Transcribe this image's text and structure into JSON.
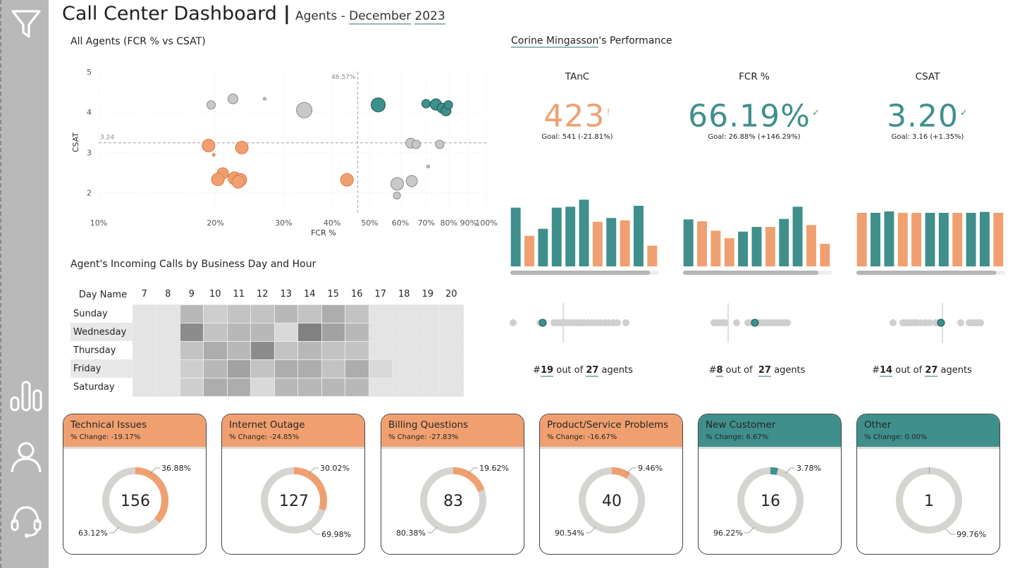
{
  "header": {
    "title": "Call Center Dashboard",
    "separator": "|",
    "subtitle_prefix": "Agents - ",
    "month": "December",
    "year": "2023"
  },
  "sidebar": {
    "icons": [
      "filter-icon",
      "bar-chart-icon",
      "user-icon",
      "headset-icon"
    ]
  },
  "scatter": {
    "title": "All Agents (FCR % vs CSAT)",
    "xlabel": "FCR %",
    "ylabel": "CSAT",
    "x_ticks": [
      "10%",
      "20%",
      "30%",
      "40%",
      "50%",
      "60%",
      "70%",
      "80%",
      "90%",
      "100%"
    ],
    "y_ticks": [
      "2",
      "3",
      "4",
      "5"
    ],
    "ref_x_label": "46.57%",
    "ref_y_label": "3.24"
  },
  "chart_data": [
    {
      "type": "scatter",
      "title": "All Agents (FCR % vs CSAT)",
      "xlabel": "FCR %",
      "ylabel": "CSAT",
      "x_scale": "log",
      "xlim": [
        10,
        100
      ],
      "ylim": [
        1.5,
        5
      ],
      "grid": true,
      "reference_lines": {
        "x": 46.57,
        "y": 3.24
      },
      "points": [
        {
          "x": 19.5,
          "y": 4.18,
          "size": 6,
          "group": "gray"
        },
        {
          "x": 22.2,
          "y": 4.33,
          "size": 7,
          "group": "gray"
        },
        {
          "x": 26.8,
          "y": 4.33,
          "size": 2,
          "group": "gray"
        },
        {
          "x": 33.9,
          "y": 4.05,
          "size": 11,
          "group": "gray"
        },
        {
          "x": 52.6,
          "y": 4.18,
          "size": 10,
          "group": "teal"
        },
        {
          "x": 69.9,
          "y": 4.21,
          "size": 6,
          "group": "teal"
        },
        {
          "x": 74.1,
          "y": 4.19,
          "size": 8,
          "group": "teal"
        },
        {
          "x": 76.9,
          "y": 4.1,
          "size": 7,
          "group": "teal"
        },
        {
          "x": 78.7,
          "y": 4.03,
          "size": 7,
          "group": "teal"
        },
        {
          "x": 79.8,
          "y": 4.18,
          "size": 6,
          "group": "teal"
        },
        {
          "x": 19.2,
          "y": 3.17,
          "size": 9,
          "group": "orange"
        },
        {
          "x": 23.4,
          "y": 3.12,
          "size": 9,
          "group": "orange"
        },
        {
          "x": 19.8,
          "y": 2.94,
          "size": 2,
          "group": "orange"
        },
        {
          "x": 20.9,
          "y": 2.48,
          "size": 8,
          "group": "orange"
        },
        {
          "x": 20.3,
          "y": 2.33,
          "size": 9,
          "group": "orange"
        },
        {
          "x": 22.4,
          "y": 2.36,
          "size": 9,
          "group": "orange"
        },
        {
          "x": 23.2,
          "y": 2.32,
          "size": 9,
          "group": "orange"
        },
        {
          "x": 22.9,
          "y": 2.27,
          "size": 9,
          "group": "orange"
        },
        {
          "x": 43.7,
          "y": 2.32,
          "size": 9,
          "group": "orange"
        },
        {
          "x": 63.8,
          "y": 3.23,
          "size": 7,
          "group": "gray"
        },
        {
          "x": 65.9,
          "y": 3.2,
          "size": 6,
          "group": "gray"
        },
        {
          "x": 75.8,
          "y": 3.2,
          "size": 6,
          "group": "gray"
        },
        {
          "x": 70.8,
          "y": 2.65,
          "size": 2,
          "group": "gray"
        },
        {
          "x": 58.9,
          "y": 2.22,
          "size": 9,
          "group": "gray"
        },
        {
          "x": 64.2,
          "y": 2.29,
          "size": 8,
          "group": "gray"
        },
        {
          "x": 58.8,
          "y": 1.93,
          "size": 5,
          "group": "gray"
        }
      ]
    },
    {
      "type": "heatmap",
      "title": "Agent's Incoming Calls by Business Day and Hour",
      "columns": [
        "7",
        "8",
        "9",
        "10",
        "11",
        "12",
        "13",
        "14",
        "15",
        "16",
        "17",
        "18",
        "19",
        "20"
      ],
      "rows": [
        "Sunday",
        "Wednesday",
        "Thursday",
        "Friday",
        "Saturday"
      ],
      "values": [
        [
          0,
          0,
          4,
          2,
          3,
          3,
          4,
          3,
          5,
          3,
          0,
          0,
          0,
          0
        ],
        [
          0,
          0,
          8,
          3,
          4,
          4,
          1,
          9,
          6,
          4,
          0,
          0,
          0,
          0
        ],
        [
          0,
          0,
          3,
          5,
          4,
          8,
          3,
          4,
          3,
          3,
          0,
          0,
          0,
          0
        ],
        [
          0,
          0,
          2,
          4,
          6,
          3,
          5,
          5,
          3,
          5,
          1,
          0,
          0,
          0
        ],
        [
          0,
          0,
          2,
          5,
          5,
          1,
          4,
          4,
          4,
          4,
          0,
          0,
          0,
          0
        ]
      ]
    },
    {
      "type": "bar",
      "title": "TAnC",
      "values": [
        12.5,
        6.5,
        8,
        12.5,
        12.7,
        14.2,
        9.5,
        10.3,
        9.8,
        12.9,
        4.4
      ],
      "colors": [
        "teal",
        "orange",
        "teal",
        "teal",
        "teal",
        "teal",
        "orange",
        "teal",
        "orange",
        "teal",
        "orange"
      ]
    },
    {
      "type": "bar",
      "title": "FCR %",
      "values": [
        10,
        9.6,
        7.6,
        6,
        7.4,
        8.4,
        8.4,
        10.1,
        12.7,
        8.8,
        4.8
      ],
      "colors": [
        "teal",
        "orange",
        "orange",
        "orange",
        "teal",
        "teal",
        "orange",
        "teal",
        "teal",
        "orange",
        "orange"
      ]
    },
    {
      "type": "bar",
      "title": "CSAT",
      "values": [
        11.4,
        11.4,
        11.7,
        11.4,
        11.4,
        11.4,
        11.4,
        11.4,
        11.4,
        11.6,
        11.4
      ],
      "colors": [
        "orange",
        "teal",
        "teal",
        "orange",
        "orange",
        "teal",
        "teal",
        "orange",
        "teal",
        "teal",
        "orange"
      ]
    },
    {
      "type": "pie",
      "title": "Technical Issues",
      "center_value": "156",
      "slices": [
        {
          "label": "36.88%",
          "value": 36.88
        },
        {
          "label": "63.12%",
          "value": 63.12
        }
      ]
    },
    {
      "type": "pie",
      "title": "Internet Outage",
      "center_value": "127",
      "slices": [
        {
          "label": "30.02%",
          "value": 30.02
        },
        {
          "label": "69.98%",
          "value": 69.98
        }
      ]
    },
    {
      "type": "pie",
      "title": "Billing Questions",
      "center_value": "83",
      "slices": [
        {
          "label": "19.62%",
          "value": 19.62
        },
        {
          "label": "80.38%",
          "value": 80.38
        }
      ]
    },
    {
      "type": "pie",
      "title": "Product/Service Problems",
      "center_value": "40",
      "slices": [
        {
          "label": "9.46%",
          "value": 9.46
        },
        {
          "label": "90.54%",
          "value": 90.54
        }
      ]
    },
    {
      "type": "pie",
      "title": "New Customer",
      "center_value": "16",
      "slices": [
        {
          "label": "3.78%",
          "value": 3.78
        },
        {
          "label": "96.22%",
          "value": 96.22
        }
      ]
    },
    {
      "type": "pie",
      "title": "Other",
      "center_value": "1",
      "slices": [
        {
          "label": "",
          "value": 0.24
        },
        {
          "label": "99.76%",
          "value": 99.76
        }
      ]
    }
  ],
  "performance": {
    "agent_name": "Corine Mingasson",
    "title_suffix": "'s Performance",
    "kpis": [
      {
        "label": "TAnC",
        "value": "423",
        "indicator": "!",
        "goal": "Goal: 541 (-21.81%)",
        "color": "#f0a070",
        "rank_prefix": "#",
        "rank": "19",
        "out_of": " out of ",
        "total": "27",
        "suffix": " agents",
        "strip_dots": [
          0,
          38,
          42,
          58,
          62,
          66,
          70,
          74,
          78,
          84,
          88,
          92,
          96,
          100,
          106,
          112,
          118,
          124,
          130,
          136,
          142,
          148,
          160
        ],
        "strip_highlight": 42,
        "strip_ref": 73
      },
      {
        "label": "FCR %",
        "value": "66.19%",
        "indicator": "✓",
        "goal": "Goal: 26.88% (+146.29%)",
        "color": "#3f8f8c",
        "rank_prefix": "#",
        "rank": "8",
        "out_of": " out of  ",
        "total": "27",
        "suffix": " agents",
        "strip_dots": [
          40,
          44,
          48,
          52,
          56,
          72,
          88,
          94,
          100,
          104,
          108,
          112,
          116,
          120,
          124,
          128,
          132,
          136,
          140,
          144
        ],
        "strip_highlight": 98,
        "strip_ref": 62
      },
      {
        "label": "CSAT",
        "value": "3.20",
        "indicator": "✓",
        "goal": "Goal: 3.16 (+1.35%)",
        "color": "#3f8f8c",
        "rank_prefix": "#",
        "rank": "14",
        "out_of": " out of ",
        "total": "27",
        "suffix": " agents",
        "strip_dots": [
          48,
          62,
          66,
          70,
          74,
          78,
          82,
          88,
          94,
          100,
          108,
          112,
          116,
          144,
          156,
          160,
          164,
          168,
          172
        ],
        "strip_highlight": 116,
        "strip_ref": 120
      }
    ],
    "bars_fill": [
      0.94,
      0.91,
      0.94
    ]
  },
  "heatmap": {
    "title": "Agent's Incoming Calls by Business Day and Hour",
    "corner_label": "Day Name"
  },
  "cards": [
    {
      "title": "Technical Issues",
      "change": "% Change: -19.17%",
      "count": "156",
      "pct_a": "36.88%",
      "pct_b": "63.12%",
      "head_color": "#f0a070",
      "slice_color": "#f0a070",
      "share": 36.88
    },
    {
      "title": "Internet Outage",
      "change": "% Change: -24.85%",
      "count": "127",
      "pct_a": "30.02%",
      "pct_b": "69.98%",
      "head_color": "#f0a070",
      "slice_color": "#f0a070",
      "share": 30.02
    },
    {
      "title": "Billing Questions",
      "change": "% Change: -27.83%",
      "count": "83",
      "pct_a": "19.62%",
      "pct_b": "80.38%",
      "head_color": "#f0a070",
      "slice_color": "#f0a070",
      "share": 19.62
    },
    {
      "title": "Product/Service Problems",
      "change": "% Change: -16.67%",
      "count": "40",
      "pct_a": "9.46%",
      "pct_b": "90.54%",
      "head_color": "#f0a070",
      "slice_color": "#f0a070",
      "share": 9.46
    },
    {
      "title": "New Customer",
      "change": "% Change: 6.67%",
      "count": "16",
      "pct_a": "3.78%",
      "pct_b": "96.22%",
      "head_color": "#3f8f8c",
      "slice_color": "#3f8f8c",
      "share": 3.78
    },
    {
      "title": "Other",
      "change": "% Change: 0.00%",
      "count": "1",
      "pct_a": "",
      "pct_b": "99.76%",
      "head_color": "#3f8f8c",
      "slice_color": "#3f8f8c",
      "share": 0.24
    }
  ],
  "colors": {
    "teal": "#3f8f8c",
    "orange": "#f0a070",
    "gray_point": "#c8c8c8",
    "track": "#d6d4d0",
    "sidebar": "#b9b9b9"
  }
}
